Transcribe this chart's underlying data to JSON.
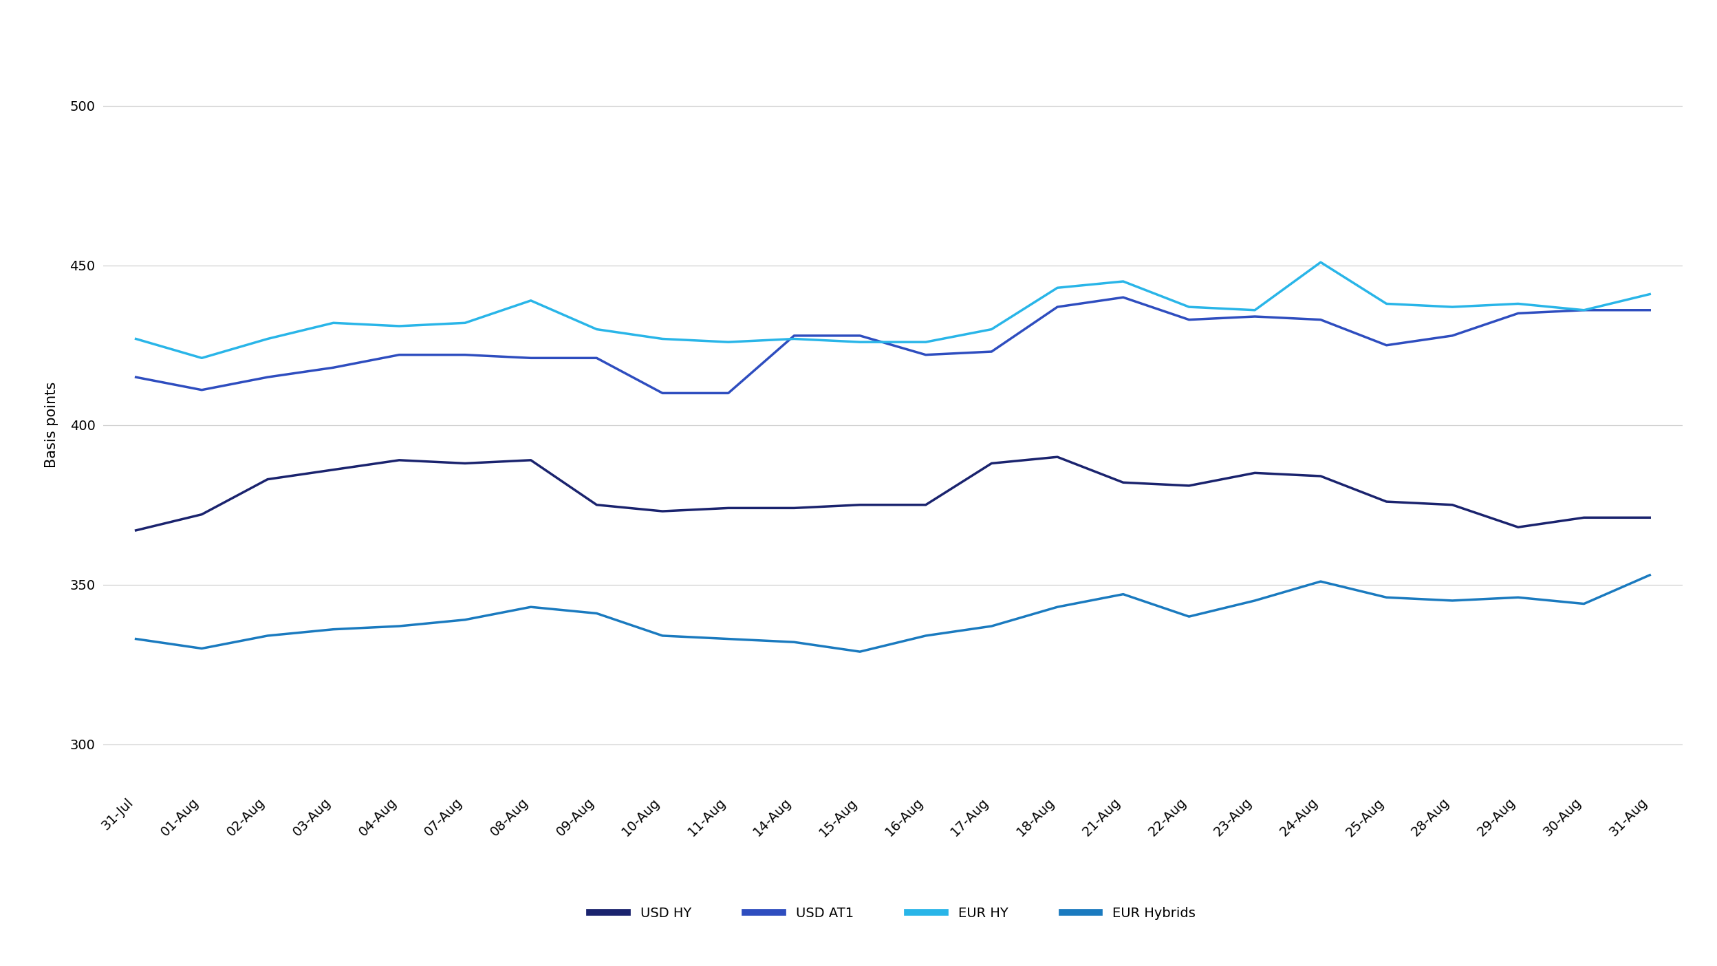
{
  "x_labels": [
    "31-Jul",
    "01-Aug",
    "02-Aug",
    "03-Aug",
    "04-Aug",
    "07-Aug",
    "08-Aug",
    "09-Aug",
    "10-Aug",
    "11-Aug",
    "14-Aug",
    "15-Aug",
    "16-Aug",
    "17-Aug",
    "18-Aug",
    "21-Aug",
    "22-Aug",
    "23-Aug",
    "24-Aug",
    "25-Aug",
    "28-Aug",
    "29-Aug",
    "30-Aug",
    "31-Aug"
  ],
  "USD_HY": [
    367,
    372,
    383,
    386,
    389,
    388,
    389,
    375,
    373,
    374,
    374,
    375,
    375,
    388,
    390,
    382,
    381,
    385,
    384,
    376,
    375,
    368,
    371,
    371
  ],
  "USD_AT1": [
    415,
    411,
    415,
    418,
    422,
    422,
    421,
    421,
    410,
    410,
    428,
    428,
    422,
    423,
    437,
    440,
    433,
    434,
    433,
    425,
    428,
    435,
    436,
    436
  ],
  "EUR_HY": [
    427,
    421,
    427,
    432,
    431,
    432,
    439,
    430,
    427,
    426,
    427,
    426,
    426,
    430,
    443,
    445,
    437,
    436,
    451,
    438,
    437,
    438,
    436,
    441
  ],
  "EUR_Hybrids": [
    333,
    330,
    334,
    336,
    337,
    339,
    343,
    341,
    334,
    333,
    332,
    329,
    334,
    337,
    343,
    347,
    340,
    345,
    351,
    346,
    345,
    346,
    344,
    353
  ],
  "colors": {
    "USD_HY": "#1a236e",
    "USD_AT1": "#2e4dbf",
    "EUR_HY": "#29b5e8",
    "EUR_Hybrids": "#1a7abf"
  },
  "y_ticks": [
    300,
    350,
    400,
    450,
    500
  ],
  "ylim": [
    285,
    515
  ],
  "ylabel": "Basis points",
  "legend_labels": [
    "USD HY",
    "USD AT1",
    "EUR HY",
    "EUR Hybrids"
  ],
  "background_color": "#ffffff",
  "grid_color": "#d0d0d0",
  "line_width": 2.5,
  "axis_fontsize": 15,
  "tick_fontsize": 14,
  "legend_fontsize": 14
}
